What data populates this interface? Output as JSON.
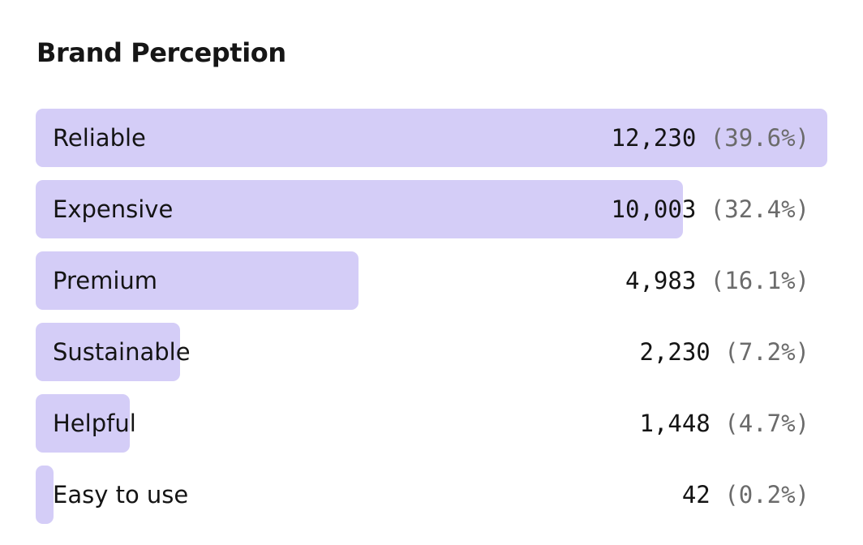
{
  "chart_data": {
    "type": "bar",
    "orientation": "horizontal",
    "title": "Brand Perception",
    "categories": [
      "Reliable",
      "Expensive",
      "Premium",
      "Sustainable",
      "Helpful",
      "Easy to use"
    ],
    "values": [
      12230,
      10003,
      4983,
      2230,
      1448,
      42
    ],
    "value_labels": [
      "12,230",
      "10,003",
      "4,983",
      "2,230",
      "1,448",
      "42"
    ],
    "percent_labels": [
      "(39.6%)",
      "(32.4%)",
      "(16.1%)",
      "(7.2%)",
      "(4.7%)",
      "(0.2%)"
    ],
    "bar_color": "#d4cdf7",
    "grid": false
  }
}
